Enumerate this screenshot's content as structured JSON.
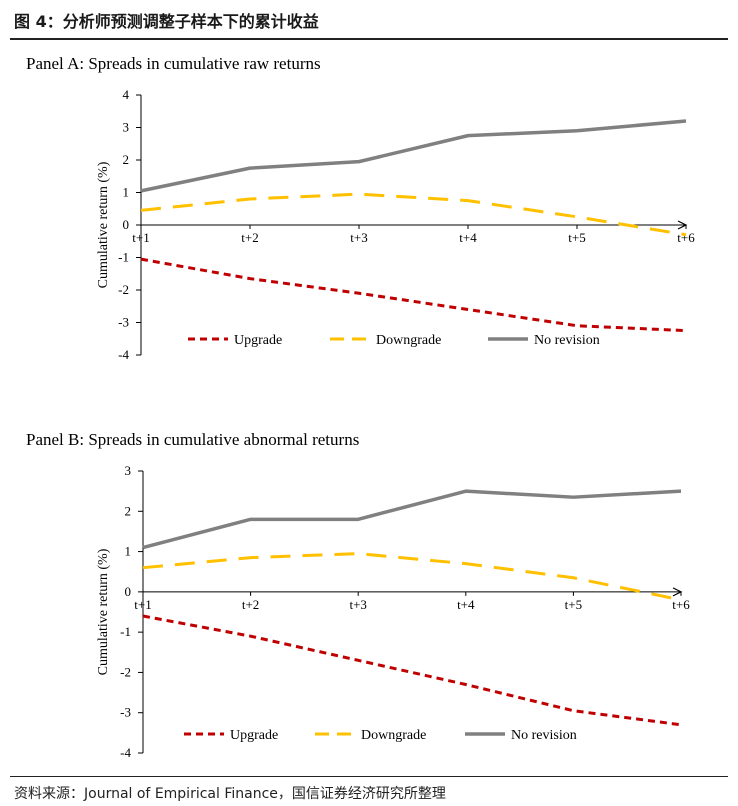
{
  "figure": {
    "title": "图 4：分析师预测调整子样本下的累计收益",
    "source": "资料来源：Journal of Empirical Finance，国信证券经济研究所整理"
  },
  "colors": {
    "upgrade": "#c00000",
    "downgrade": "#ffc000",
    "no_revision": "#808080"
  },
  "chart_data": [
    {
      "type": "line",
      "title": "Panel A: Spreads in cumulative raw returns",
      "xlabel": "",
      "ylabel": "Cumulative return (%)",
      "categories": [
        "t+1",
        "t+2",
        "t+3",
        "t+4",
        "t+5",
        "t+6"
      ],
      "ylim": [
        -4,
        4
      ],
      "yticks": [
        4,
        3,
        2,
        1,
        0,
        -1,
        -2,
        -3,
        -4
      ],
      "legend_position": "bottom",
      "series": [
        {
          "name": "Upgrade",
          "style": "dashed",
          "values": [
            -1.05,
            -1.65,
            -2.1,
            -2.6,
            -3.1,
            -3.25
          ]
        },
        {
          "name": "Downgrade",
          "style": "long-dash",
          "values": [
            0.45,
            0.8,
            0.95,
            0.75,
            0.25,
            -0.3
          ]
        },
        {
          "name": "No revision",
          "style": "solid",
          "values": [
            1.05,
            1.75,
            1.95,
            2.75,
            2.9,
            3.2
          ]
        }
      ]
    },
    {
      "type": "line",
      "title": "Panel B: Spreads in cumulative abnormal returns",
      "xlabel": "",
      "ylabel": "Cumulative return (%)",
      "categories": [
        "t+1",
        "t+2",
        "t+3",
        "t+4",
        "t+5",
        "t+6"
      ],
      "ylim": [
        -4,
        3
      ],
      "yticks": [
        3,
        2,
        1,
        0,
        -1,
        -2,
        -3,
        -4
      ],
      "legend_position": "bottom",
      "series": [
        {
          "name": "Upgrade",
          "style": "dashed",
          "values": [
            -0.6,
            -1.1,
            -1.7,
            -2.3,
            -2.95,
            -3.3
          ]
        },
        {
          "name": "Downgrade",
          "style": "long-dash",
          "values": [
            0.6,
            0.85,
            0.95,
            0.7,
            0.35,
            -0.2
          ]
        },
        {
          "name": "No revision",
          "style": "solid",
          "values": [
            1.1,
            1.8,
            1.8,
            2.5,
            2.35,
            2.5
          ]
        }
      ]
    }
  ]
}
